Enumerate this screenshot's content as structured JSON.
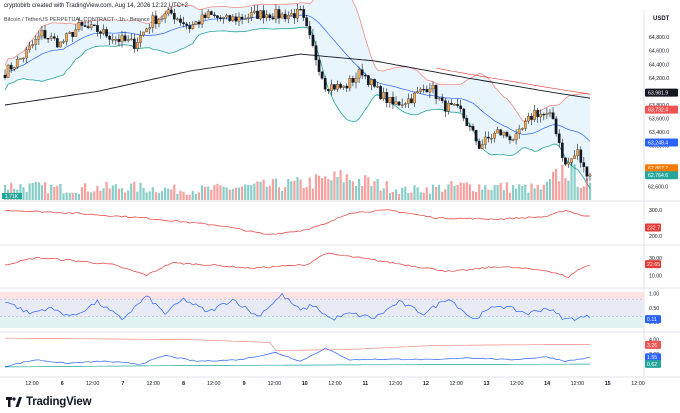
{
  "header": {
    "credit": "cryptobirb created with TradingView.com, Aug 14, 2026 12:22 UTC+2",
    "symbol_line": "Bitcoin / TetherUS PERPETUAL CONTRACT · 1h · Binance",
    "currency": "USDT"
  },
  "footer": {
    "brand": "TradingView"
  },
  "colors": {
    "up": "#26a69a",
    "down": "#ef5350",
    "bb_fill": "#e3f2fd",
    "bb_upper": "#f28b82",
    "bb_lower": "#26a69a",
    "bb_mid": "#2962ff",
    "ma": "#131722",
    "pane2": "#e53935",
    "pane3": "#e53935",
    "pane4": "#2962ff",
    "pane5_blue": "#2962ff",
    "pane5_red": "#f28b82",
    "pane5_green": "#26a69a"
  },
  "chart_data": [
    {
      "type": "candlestick",
      "title": "",
      "ylim": [
        62400,
        65200
      ],
      "y_ticks": [
        "64,800.0",
        "64,600.0",
        "64,400.0",
        "64,200.0",
        "63,800.0",
        "63,600.0",
        "63,400.0",
        "63,200.0",
        "62,800.0",
        "62,600.0"
      ],
      "x_ticks": [
        "12:00",
        "6",
        "12:00",
        "7",
        "12:00",
        "8",
        "12:00",
        "9",
        "12:00",
        "10",
        "12:00",
        "11",
        "12:00",
        "12",
        "12:00",
        "13",
        "12:00",
        "14",
        "12:00",
        "15",
        "12:00"
      ],
      "price_tags": [
        {
          "label": "63,981.9",
          "value": 63982,
          "color": "#131722"
        },
        {
          "label": "63,732.4",
          "value": 63732,
          "color": "#ef5350"
        },
        {
          "label": "63,248.4",
          "value": 63248,
          "color": "#2962ff"
        },
        {
          "label": "62,867.7",
          "value": 62868,
          "color": "#f57c00"
        },
        {
          "label": "37:12",
          "value": 62800,
          "color": "#f57c00"
        },
        {
          "label": "62,764.6",
          "value": 62765,
          "color": "#26a69a"
        },
        {
          "label": "62,600.0",
          "value": 62600,
          "color": "#ffffff"
        }
      ],
      "price_anchors": [
        [
          0,
          64280
        ],
        [
          6,
          64520
        ],
        [
          12,
          64850
        ],
        [
          18,
          64700
        ],
        [
          24,
          64950
        ],
        [
          30,
          64900
        ],
        [
          36,
          64780
        ],
        [
          42,
          64700
        ],
        [
          48,
          65050
        ],
        [
          54,
          65150
        ],
        [
          60,
          64950
        ],
        [
          66,
          65120
        ],
        [
          72,
          65050
        ],
        [
          78,
          65100
        ],
        [
          84,
          65150
        ],
        [
          90,
          65120
        ],
        [
          96,
          65150
        ],
        [
          98,
          64900
        ],
        [
          104,
          64100
        ],
        [
          110,
          64050
        ],
        [
          116,
          64300
        ],
        [
          120,
          64050
        ],
        [
          126,
          63800
        ],
        [
          132,
          63900
        ],
        [
          138,
          64100
        ],
        [
          142,
          63800
        ],
        [
          148,
          63700
        ],
        [
          154,
          63200
        ],
        [
          160,
          63400
        ],
        [
          166,
          63300
        ],
        [
          172,
          63700
        ],
        [
          178,
          63600
        ],
        [
          182,
          62900
        ],
        [
          186,
          63100
        ],
        [
          188,
          62850
        ],
        [
          190,
          62800
        ]
      ],
      "ma_anchors": [
        [
          0,
          63800
        ],
        [
          30,
          64000
        ],
        [
          60,
          64300
        ],
        [
          96,
          64550
        ],
        [
          120,
          64450
        ],
        [
          150,
          64200
        ],
        [
          176,
          64000
        ],
        [
          190,
          63900
        ]
      ],
      "vol_anchors": [
        [
          0,
          0.45
        ],
        [
          20,
          0.35
        ],
        [
          40,
          0.4
        ],
        [
          60,
          0.3
        ],
        [
          96,
          0.5
        ],
        [
          110,
          0.7
        ],
        [
          130,
          0.3
        ],
        [
          150,
          0.45
        ],
        [
          175,
          0.35
        ],
        [
          182,
          1.0
        ],
        [
          190,
          0.4
        ]
      ],
      "vol_label": "1.71K"
    },
    {
      "type": "line",
      "title": "",
      "ylim": [
        180,
        320
      ],
      "y_ticks": [
        "300.0",
        "200.0"
      ],
      "value_tag": "232.7",
      "anchors": [
        [
          0,
          300
        ],
        [
          20,
          290
        ],
        [
          45,
          270
        ],
        [
          70,
          240
        ],
        [
          85,
          205
        ],
        [
          96,
          220
        ],
        [
          104,
          245
        ],
        [
          112,
          290
        ],
        [
          125,
          300
        ],
        [
          140,
          270
        ],
        [
          160,
          265
        ],
        [
          176,
          275
        ],
        [
          182,
          300
        ],
        [
          188,
          278
        ],
        [
          190,
          275
        ]
      ]
    },
    {
      "type": "line",
      "title": "",
      "ylim": [
        0,
        40
      ],
      "y_ticks": [
        "30.00",
        "10.00"
      ],
      "value_tag": "22.65",
      "anchors": [
        [
          0,
          22
        ],
        [
          10,
          30
        ],
        [
          22,
          27
        ],
        [
          35,
          22
        ],
        [
          46,
          10
        ],
        [
          54,
          24
        ],
        [
          66,
          22
        ],
        [
          80,
          18
        ],
        [
          98,
          22
        ],
        [
          104,
          35
        ],
        [
          115,
          30
        ],
        [
          130,
          22
        ],
        [
          145,
          14
        ],
        [
          160,
          20
        ],
        [
          175,
          16
        ],
        [
          183,
          8
        ],
        [
          186,
          16
        ],
        [
          190,
          22
        ]
      ]
    },
    {
      "type": "line",
      "title": "",
      "ylim": [
        -0.2,
        1.05
      ],
      "y_ticks": [
        "1.00",
        "0.50",
        "0.00"
      ],
      "value_tag": "0.11",
      "anchors": [
        [
          0,
          0.75
        ],
        [
          8,
          0.3
        ],
        [
          14,
          0.5
        ],
        [
          22,
          0.2
        ],
        [
          30,
          0.7
        ],
        [
          38,
          0.1
        ],
        [
          46,
          0.9
        ],
        [
          52,
          0.3
        ],
        [
          58,
          0.8
        ],
        [
          66,
          0.35
        ],
        [
          74,
          0.8
        ],
        [
          82,
          0.2
        ],
        [
          90,
          0.95
        ],
        [
          96,
          0.4
        ],
        [
          100,
          0.6
        ],
        [
          106,
          0.1
        ],
        [
          112,
          0.3
        ],
        [
          120,
          0.15
        ],
        [
          128,
          0.7
        ],
        [
          136,
          0.3
        ],
        [
          144,
          0.85
        ],
        [
          152,
          0.1
        ],
        [
          160,
          0.6
        ],
        [
          170,
          0.3
        ],
        [
          176,
          0.5
        ],
        [
          182,
          0.1
        ],
        [
          190,
          0.2
        ]
      ],
      "band_upper": 0.8,
      "band_lower": 0.2
    },
    {
      "type": "line",
      "title": "",
      "ylim": [
        -0.5,
        4.5
      ],
      "y_ticks": [
        "4.00",
        "2.00"
      ],
      "value_tags": [
        "3.26",
        "1.55",
        "0.62"
      ],
      "series_blue": [
        [
          0,
          0.3
        ],
        [
          10,
          1.2
        ],
        [
          20,
          0.7
        ],
        [
          32,
          1.0
        ],
        [
          44,
          0.6
        ],
        [
          52,
          1.8
        ],
        [
          62,
          1.0
        ],
        [
          76,
          1.2
        ],
        [
          88,
          2.2
        ],
        [
          96,
          1.0
        ],
        [
          104,
          2.8
        ],
        [
          112,
          1.2
        ],
        [
          124,
          1.3
        ],
        [
          140,
          1.2
        ],
        [
          150,
          1.5
        ],
        [
          164,
          1.2
        ],
        [
          176,
          1.6
        ],
        [
          182,
          1.0
        ],
        [
          190,
          1.5
        ]
      ],
      "series_red": [
        [
          0,
          4.2
        ],
        [
          30,
          4.1
        ],
        [
          60,
          4.0
        ],
        [
          86,
          3.6
        ],
        [
          88,
          2.5
        ],
        [
          110,
          2.6
        ],
        [
          140,
          3.2
        ],
        [
          176,
          3.3
        ],
        [
          190,
          3.3
        ]
      ],
      "series_green": [
        [
          0,
          0.2
        ],
        [
          60,
          0.4
        ],
        [
          120,
          0.5
        ],
        [
          190,
          0.6
        ]
      ]
    }
  ]
}
